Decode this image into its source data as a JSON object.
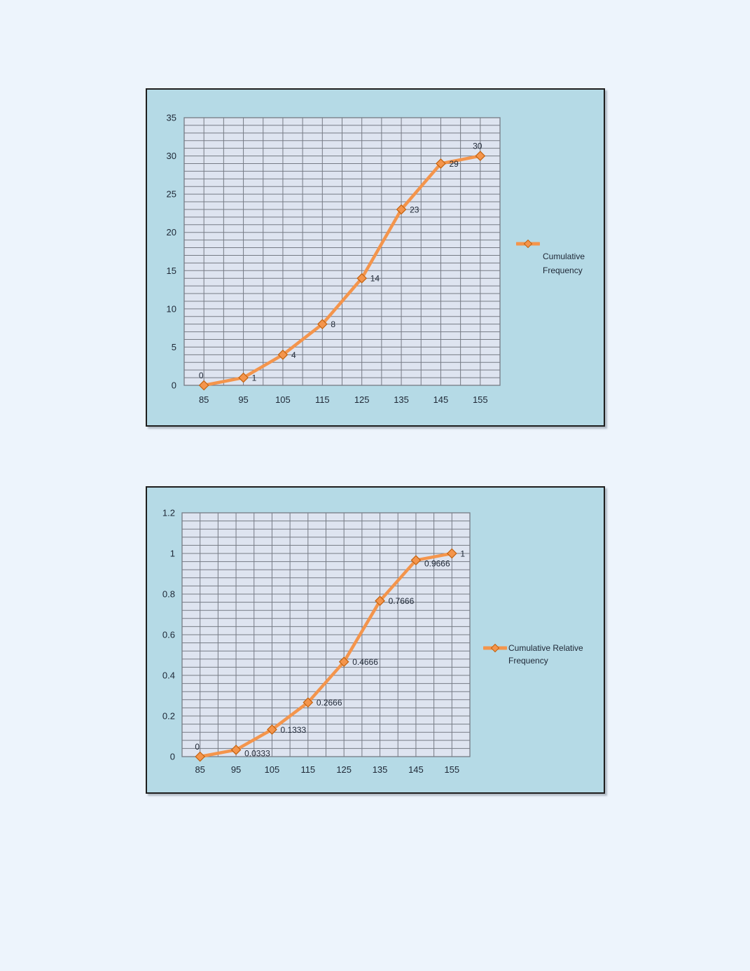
{
  "page": {
    "background_color": "#edf4fc",
    "chart_background_color": "#b5dae6",
    "plot_background_color": "#dee4f0",
    "gridline_color": "#767b85",
    "series_color": "#f4954c",
    "marker_border_color": "#c2620f",
    "text_color": "#1e2735"
  },
  "chart_data": [
    {
      "type": "line",
      "title": "",
      "xlabel": "",
      "ylabel": "",
      "x": [
        85,
        95,
        105,
        115,
        125,
        135,
        145,
        155
      ],
      "series": [
        {
          "name": "Cumulative Frequency",
          "values": [
            0,
            1,
            4,
            8,
            14,
            23,
            29,
            30
          ]
        }
      ],
      "point_labels": [
        "0",
        "1",
        "4",
        "8",
        "14",
        "23",
        "29",
        "30"
      ],
      "label_positions": [
        "above",
        "right",
        "right",
        "right",
        "right",
        "right",
        "right",
        "above"
      ],
      "xtick_labels": [
        "85",
        "95",
        "105",
        "115",
        "125",
        "135",
        "145",
        "155"
      ],
      "ytick_labels": [
        "0",
        "5",
        "10",
        "15",
        "20",
        "25",
        "30",
        "35"
      ],
      "xlim": [
        80,
        160
      ],
      "ylim": [
        0,
        35
      ],
      "y_major_step": 5,
      "y_minor_step": 1,
      "x_grid_step": 5,
      "grid": true,
      "legend_position": "right",
      "legend_label": "Cumulative Frequency"
    },
    {
      "type": "line",
      "title": "",
      "xlabel": "",
      "ylabel": "",
      "x": [
        85,
        95,
        105,
        115,
        125,
        135,
        145,
        155
      ],
      "series": [
        {
          "name": "Cumulative Relative Frequency",
          "values": [
            0,
            0.0333,
            0.1333,
            0.2666,
            0.4666,
            0.7666,
            0.9666,
            1
          ]
        }
      ],
      "point_labels": [
        "0",
        "0.0333",
        "0.1333",
        "0.2666",
        "0.4666",
        "0.7666",
        "0.9666",
        "1"
      ],
      "label_positions": [
        "above",
        "right-below",
        "right",
        "right",
        "right",
        "right",
        "right-below",
        "right"
      ],
      "xtick_labels": [
        "85",
        "95",
        "105",
        "115",
        "125",
        "135",
        "145",
        "155"
      ],
      "ytick_labels": [
        "0",
        "0.2",
        "0.4",
        "0.6",
        "0.8",
        "1",
        "1.2"
      ],
      "xlim": [
        80,
        160
      ],
      "ylim": [
        0,
        1.2
      ],
      "y_major_step": 0.2,
      "y_minor_step": 0.04,
      "x_grid_step": 5,
      "grid": true,
      "legend_position": "right",
      "legend_label": "Cumulative Relative Frequency"
    }
  ]
}
